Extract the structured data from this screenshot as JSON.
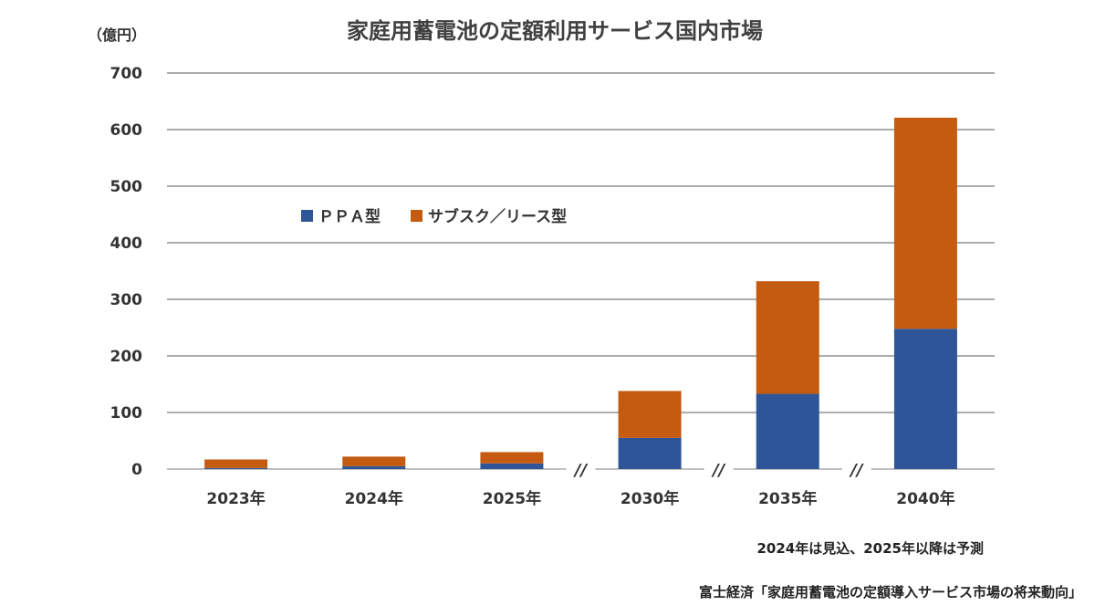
{
  "chart_data": {
    "type": "bar",
    "stacked": true,
    "title": "家庭用蓄電池の定額利用サービス国内市場",
    "ylabel": "（億円）",
    "xlabel": "",
    "ylim": [
      0,
      700
    ],
    "yticks": [
      0,
      100,
      200,
      300,
      400,
      500,
      600,
      700
    ],
    "categories": [
      "2023年",
      "2024年",
      "2025年",
      "2030年",
      "2035年",
      "2040年"
    ],
    "axis_breaks_after": [
      "2025年",
      "2030年",
      "2035年"
    ],
    "axis_break_label": "//",
    "series": [
      {
        "name": "ＰＰＡ型",
        "color": "#2e5597",
        "values": [
          2,
          5,
          10,
          55,
          133,
          248
        ]
      },
      {
        "name": "サブスク／リース型",
        "color": "#c55a11",
        "values": [
          15,
          17,
          20,
          83,
          199,
          373
        ]
      }
    ],
    "grid": true,
    "legend_position": "top-left inside plot"
  },
  "notes": {
    "forecast": "2024年は見込、2025年以降は予測",
    "source": "富士経済「家庭用蓄電池の定額導入サービス市場の将来動向」"
  }
}
